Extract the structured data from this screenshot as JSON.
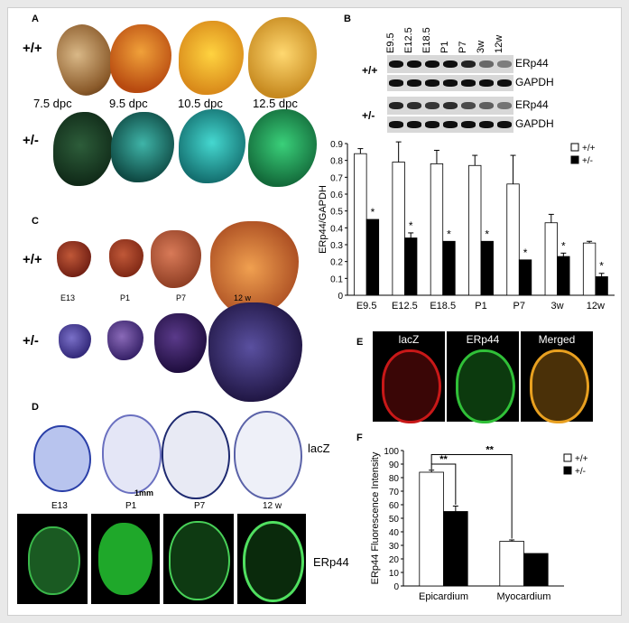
{
  "panels": {
    "A": {
      "label": "A",
      "wt": "+/+",
      "het": "+/-",
      "stages": [
        "7.5 dpc",
        "9.5 dpc",
        "10.5 dpc",
        "12.5 dpc"
      ]
    },
    "B": {
      "label": "B",
      "lanes": [
        "E9.5",
        "E12.5",
        "E18.5",
        "P1",
        "P7",
        "3w",
        "12w"
      ],
      "wt": "+/+",
      "het": "+/-",
      "band_labels": [
        "ERp44",
        "GAPDH",
        "ERp44",
        "GAPDH"
      ]
    },
    "C": {
      "label": "C",
      "wt": "+/+",
      "het": "+/-",
      "stages": [
        "E13",
        "P1",
        "P7",
        "12 w"
      ]
    },
    "D": {
      "label": "D",
      "lacz": "lacZ",
      "scale": "1mm",
      "stages": [
        "E13",
        "P1",
        "P7",
        "12 w"
      ],
      "erp44": "ERp44"
    },
    "E": {
      "label": "E",
      "tiles": [
        "lacZ",
        "ERp44",
        "Merged"
      ]
    },
    "F": {
      "label": "F"
    }
  },
  "chart_data": [
    {
      "id": "B",
      "type": "bar",
      "ylabel": "ERp44/GAPDH",
      "ylim": [
        0,
        0.9
      ],
      "yticks": [
        "0",
        "0.1",
        "0.2",
        "0.3",
        "0.4",
        "0.5",
        "0.6",
        "0.7",
        "0.8",
        "0.9"
      ],
      "categories": [
        "E9.5",
        "E12.5",
        "E18.5",
        "P1",
        "P7",
        "3w",
        "12w"
      ],
      "series": [
        {
          "name": "+/+",
          "color": "#ffffff",
          "values": [
            0.84,
            0.79,
            0.78,
            0.77,
            0.66,
            0.43,
            0.31
          ],
          "errors": [
            0.03,
            0.12,
            0.08,
            0.06,
            0.17,
            0.05,
            0.01
          ]
        },
        {
          "name": "+/-",
          "color": "#000000",
          "values": [
            0.45,
            0.34,
            0.32,
            0.32,
            0.21,
            0.23,
            0.11
          ],
          "errors": [
            0.0,
            0.03,
            0.0,
            0.0,
            0.0,
            0.02,
            0.02
          ]
        }
      ],
      "significance": [
        "*",
        "*",
        "*",
        "*",
        "*",
        "*",
        "*"
      ],
      "legend": "top-right"
    },
    {
      "id": "F",
      "type": "bar",
      "ylabel": "ERp44 Fluorescence Intensity",
      "ylim": [
        0,
        100
      ],
      "yticks": [
        "0",
        "10",
        "20",
        "30",
        "40",
        "50",
        "60",
        "70",
        "80",
        "90",
        "100"
      ],
      "categories": [
        "Epicardium",
        "Myocardium"
      ],
      "series": [
        {
          "name": "+/+",
          "color": "#ffffff",
          "values": [
            84,
            33
          ],
          "errors": [
            1.5,
            1
          ]
        },
        {
          "name": "+/-",
          "color": "#000000",
          "values": [
            55,
            24
          ],
          "errors": [
            4,
            0
          ]
        }
      ],
      "significance": [
        "**",
        "**"
      ],
      "legend": "top-right"
    }
  ]
}
